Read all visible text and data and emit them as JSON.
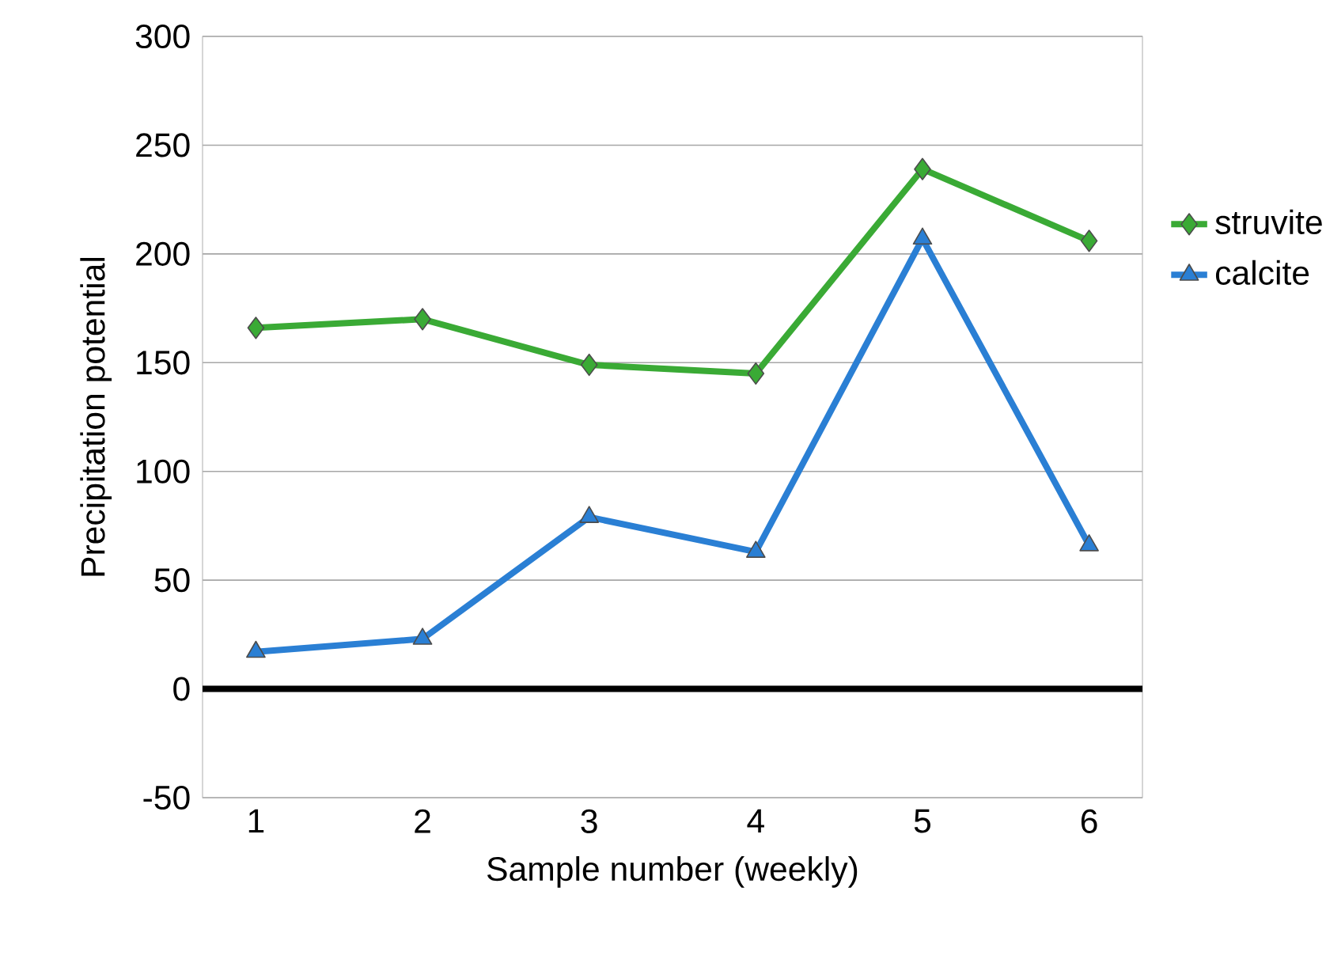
{
  "chart_data": {
    "type": "line",
    "xlabel": "Sample number (weekly)",
    "ylabel": "Precipitation potential",
    "categories": [
      "1",
      "2",
      "3",
      "4",
      "5",
      "6"
    ],
    "series": [
      {
        "name": "struvite",
        "color": "#3aaa35",
        "marker": "diamond",
        "values": [
          166,
          170,
          149,
          145,
          239,
          206
        ]
      },
      {
        "name": "calcite",
        "color": "#2a7fd4",
        "marker": "triangle",
        "values": [
          17,
          23,
          79,
          63,
          207,
          66
        ]
      }
    ],
    "ylim": [
      -50,
      300
    ],
    "yticks": [
      -50,
      0,
      50,
      100,
      150,
      200,
      250,
      300
    ],
    "grid": "y",
    "legend": "right",
    "line_style": "solid",
    "ref_lines": [
      {
        "axis": "y",
        "value": 0,
        "color": "#000000"
      }
    ]
  }
}
